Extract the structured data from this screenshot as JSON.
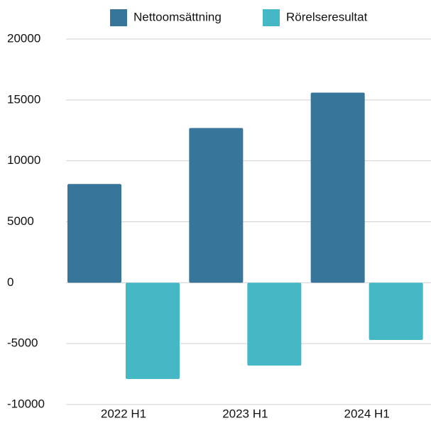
{
  "chart_data": {
    "type": "bar",
    "categories": [
      "2022 H1",
      "2023 H1",
      "2024 H1"
    ],
    "series": [
      {
        "name": "Nettoomsättning",
        "color": "#37769a",
        "values": [
          8100,
          12700,
          15600
        ]
      },
      {
        "name": "Rörelseresultat",
        "color": "#45b8c6",
        "values": [
          -7900,
          -6800,
          -4700
        ]
      }
    ],
    "ylim": [
      -10000,
      20000
    ],
    "yticks": [
      -10000,
      -5000,
      0,
      5000,
      10000,
      15000,
      20000
    ],
    "grid": true,
    "legend": "top"
  }
}
